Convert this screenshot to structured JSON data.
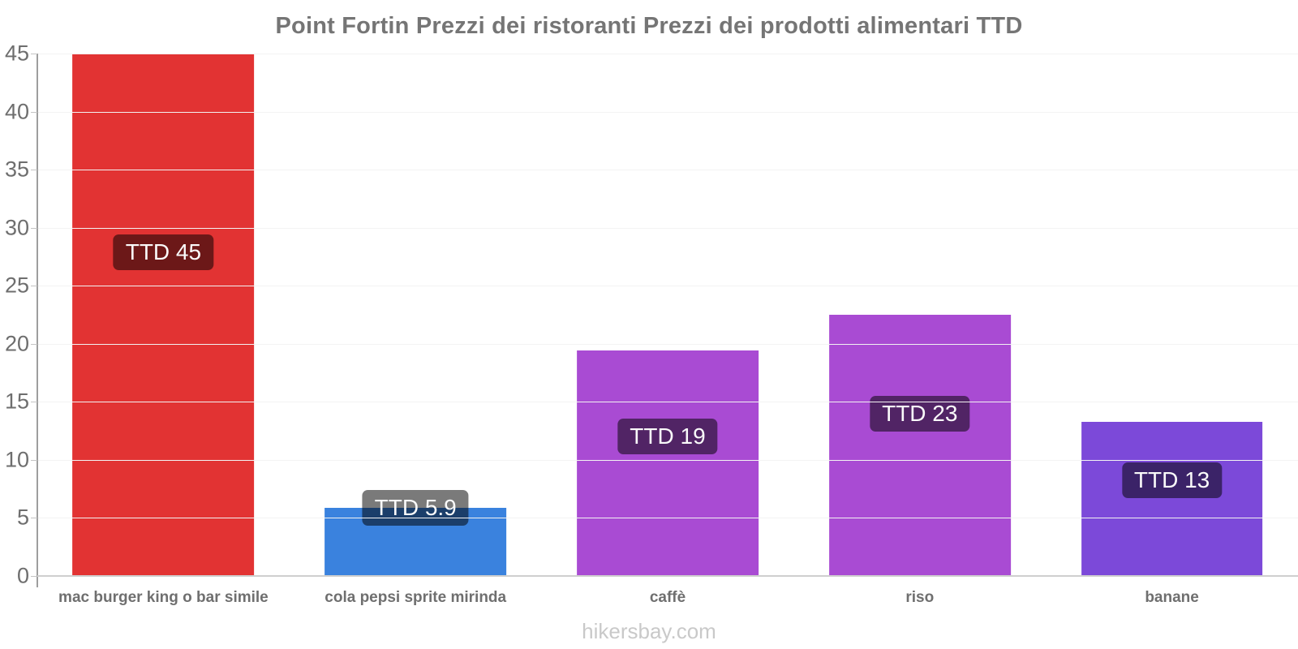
{
  "title": "Point Fortin Prezzi dei ristoranti Prezzi dei prodotti alimentari TTD",
  "footer": "hikersbay.com",
  "chart_data": {
    "type": "bar",
    "title": "Point Fortin Prezzi dei ristoranti Prezzi dei prodotti alimentari TTD",
    "categories": [
      "mac burger king o bar simile",
      "cola pepsi sprite mirinda",
      "caffè",
      "riso",
      "banane"
    ],
    "values": [
      45,
      5.9,
      19.4,
      22.5,
      13.3
    ],
    "point_labels": [
      "TTD 45",
      "TTD 5.9",
      "TTD 19",
      "TTD 23",
      "TTD 13"
    ],
    "bar_colors": [
      "#e23333",
      "#3a82de",
      "#a94bd3",
      "#a94bd3",
      "#7c49d9"
    ],
    "currency": "TTD",
    "xlabel": "",
    "ylabel": "",
    "ylim": [
      0,
      45
    ],
    "yticks": [
      0,
      5,
      10,
      15,
      20,
      25,
      30,
      35,
      40,
      45
    ],
    "grid": "horizontal-faint",
    "legend": "none",
    "value_label_bg": "rgba(0,0,0,0.52)",
    "watermark": "hikersbay.com"
  }
}
